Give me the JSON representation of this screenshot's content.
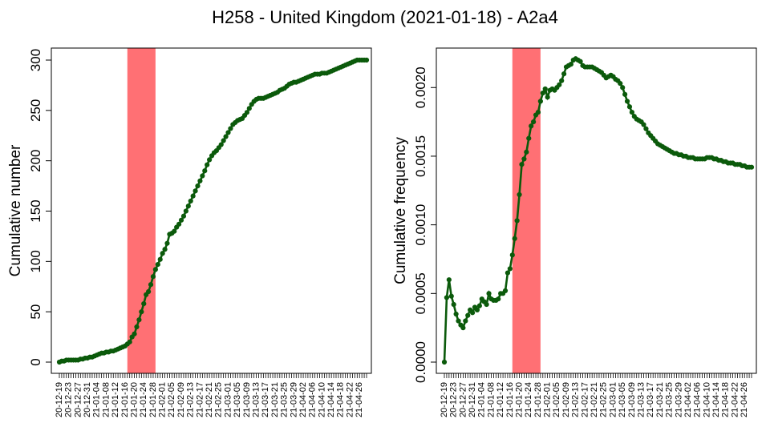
{
  "title": "H258 - United Kingdom (2021-01-18) - A2a4",
  "colors": {
    "series": "#0b5a0b",
    "highlight": "#ff7074",
    "axis": "#000000"
  },
  "x_tick_labels": [
    "20-12-19",
    "20-12-23",
    "20-12-27",
    "20-12-31",
    "21-01-04",
    "21-01-08",
    "21-01-12",
    "21-01-16",
    "21-01-20",
    "21-01-24",
    "21-01-28",
    "21-02-01",
    "21-02-05",
    "21-02-09",
    "21-02-13",
    "21-02-17",
    "21-02-21",
    "21-02-25",
    "21-03-01",
    "21-03-05",
    "21-03-09",
    "21-03-13",
    "21-03-17",
    "21-03-21",
    "21-03-25",
    "21-03-29",
    "21-04-02",
    "21-04-06",
    "21-04-10",
    "21-04-14",
    "21-04-18",
    "21-04-22",
    "21-04-26"
  ],
  "chart_data": [
    {
      "type": "line",
      "ylabel": "Cumulative number",
      "ylim": [
        0,
        300
      ],
      "yticks": [
        "0",
        "50",
        "100",
        "150",
        "200",
        "250",
        "300"
      ],
      "highlight_range": [
        "21-01-17",
        "21-01-29"
      ],
      "x_start": "20-12-19",
      "x_end": "21-04-29",
      "y": [
        0,
        1,
        1,
        2,
        2,
        2,
        2,
        2,
        2,
        3,
        3,
        4,
        4,
        5,
        5,
        6,
        7,
        8,
        9,
        9,
        10,
        10,
        11,
        11,
        12,
        13,
        14,
        15,
        16,
        18,
        20,
        25,
        28,
        35,
        42,
        50,
        58,
        67,
        70,
        77,
        85,
        92,
        97,
        102,
        108,
        112,
        118,
        127,
        128,
        130,
        134,
        137,
        141,
        145,
        150,
        155,
        160,
        165,
        170,
        175,
        180,
        185,
        190,
        196,
        201,
        205,
        208,
        210,
        213,
        216,
        220,
        224,
        228,
        232,
        236,
        238,
        240,
        241,
        242,
        245,
        248,
        252,
        256,
        259,
        261,
        262,
        262,
        262,
        263,
        264,
        265,
        266,
        267,
        268,
        270,
        271,
        272,
        274,
        276,
        277,
        278,
        278,
        279,
        280,
        281,
        282,
        283,
        284,
        285,
        286,
        286,
        286,
        287,
        287,
        287,
        288,
        289,
        290,
        291,
        292,
        293,
        294,
        295,
        296,
        297,
        298,
        299,
        300,
        300,
        300,
        300,
        300
      ]
    },
    {
      "type": "line",
      "ylabel": "Cumulative frequency",
      "ylim": [
        0,
        0.0022
      ],
      "yticks": [
        "0.0000",
        "0.0005",
        "0.0010",
        "0.0015",
        "0.0020"
      ],
      "highlight_range": [
        "21-01-17",
        "21-01-29"
      ],
      "x_start": "20-12-19",
      "x_end": "21-04-29",
      "y": [
        0,
        0.00047,
        0.0006,
        0.00048,
        0.00042,
        0.00035,
        0.0003,
        0.00027,
        0.00025,
        0.0003,
        0.00034,
        0.00038,
        0.00036,
        0.0004,
        0.00038,
        0.00041,
        0.00046,
        0.00044,
        0.00042,
        0.0005,
        0.00046,
        0.00045,
        0.00045,
        0.00046,
        0.0005,
        0.0005,
        0.00052,
        0.00065,
        0.00068,
        0.00078,
        0.0009,
        0.00103,
        0.00122,
        0.00144,
        0.00148,
        0.00153,
        0.00163,
        0.00172,
        0.00175,
        0.0018,
        0.00182,
        0.0019,
        0.00196,
        0.00199,
        0.00193,
        0.00198,
        0.00199,
        0.00198,
        0.002,
        0.00202,
        0.00205,
        0.0021,
        0.00215,
        0.00216,
        0.00217,
        0.0022,
        0.00221,
        0.0022,
        0.00219,
        0.00216,
        0.00215,
        0.00215,
        0.00215,
        0.00215,
        0.00214,
        0.00213,
        0.00212,
        0.00211,
        0.00209,
        0.00207,
        0.00208,
        0.00209,
        0.00208,
        0.00206,
        0.00205,
        0.00203,
        0.002,
        0.00195,
        0.0019,
        0.00186,
        0.00182,
        0.00179,
        0.00177,
        0.00176,
        0.00175,
        0.00173,
        0.0017,
        0.00167,
        0.00165,
        0.00163,
        0.00161,
        0.00159,
        0.00158,
        0.00157,
        0.00156,
        0.00155,
        0.00154,
        0.00153,
        0.00152,
        0.00152,
        0.00151,
        0.00151,
        0.0015,
        0.0015,
        0.00149,
        0.00149,
        0.00149,
        0.00148,
        0.00148,
        0.00148,
        0.00148,
        0.00148,
        0.00149,
        0.00149,
        0.00149,
        0.00148,
        0.00148,
        0.00147,
        0.00147,
        0.00146,
        0.00146,
        0.00145,
        0.00145,
        0.00145,
        0.00144,
        0.00144,
        0.00144,
        0.00143,
        0.00143,
        0.00142,
        0.00142,
        0.00142
      ]
    }
  ]
}
